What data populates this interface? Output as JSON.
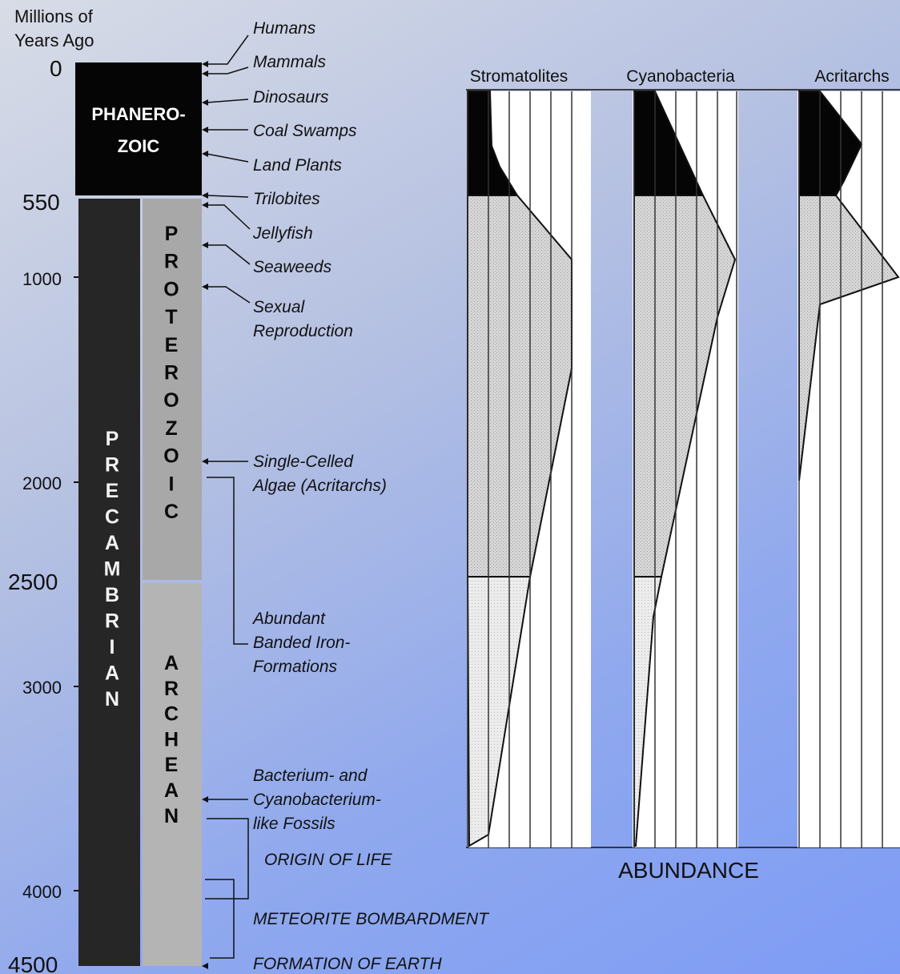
{
  "axis": {
    "title_line1": "Millions of",
    "title_line2": "Years Ago",
    "ticks": [
      "0",
      "550",
      "1000",
      "2000",
      "2500",
      "3000",
      "4000",
      "4500"
    ]
  },
  "eras": {
    "phanerozoic_line1": "PHANERO-",
    "phanerozoic_line2": "ZOIC",
    "precambrian": "PRECAMBRIAN",
    "proterozoic": "PROTEROZOIC",
    "archean": "ARCHEAN"
  },
  "events": {
    "humans": "Humans",
    "mammals": "Mammals",
    "dinosaurs": "Dinosaurs",
    "coal_swamps": "Coal Swamps",
    "land_plants": "Land Plants",
    "trilobites": "Trilobites",
    "jellyfish": "Jellyfish",
    "seaweeds": "Seaweeds",
    "sexual_reproduction_1": "Sexual",
    "sexual_reproduction_2": "Reproduction",
    "single_celled_1": "Single-Celled",
    "single_celled_2": "Algae (Acritarchs)",
    "banded_iron_1": "Abundant",
    "banded_iron_2": "Banded Iron-",
    "banded_iron_3": "Formations",
    "bacterium_1": "Bacterium- and",
    "bacterium_2": "Cyanobacterium-",
    "bacterium_3": "like Fossils",
    "origin_of_life": "ORIGIN OF LIFE",
    "meteorite": "METEORITE BOMBARDMENT",
    "formation": "FORMATION OF EARTH"
  },
  "abundance": {
    "xlabel": "ABUNDANCE",
    "columns": [
      {
        "title": "Stromatolites"
      },
      {
        "title": "Cyanobacteria"
      },
      {
        "title": "Acritarchs"
      }
    ]
  },
  "colors": {
    "phanerozoic": "#050505",
    "precambrian": "#262626",
    "proterozoic": "#a8a8a8",
    "archean": "#b4b4b4",
    "abundance_light": "#d2d2d2",
    "abundance_lighter": "#e4e4e4"
  }
}
